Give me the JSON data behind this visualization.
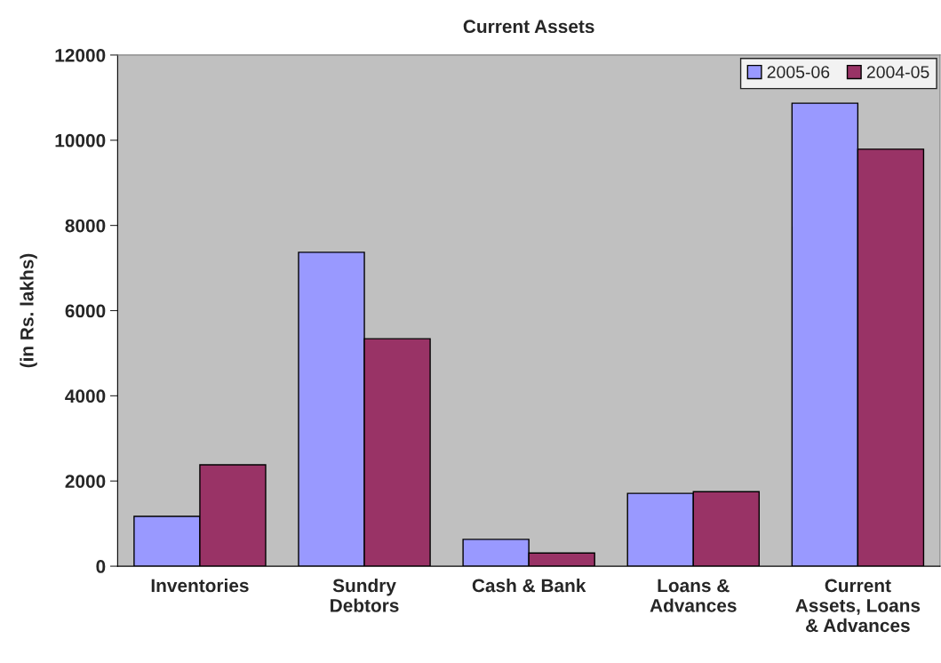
{
  "chart_data": {
    "type": "bar",
    "title": "Current Assets",
    "ylabel": "(in Rs. lakhs)",
    "categories": [
      "Inventories",
      "Sundry\nDebtors",
      "Cash & Bank",
      "Loans &\nAdvances",
      "Current\nAssets, Loans\n& Advances"
    ],
    "series": [
      {
        "name": "2005-06",
        "color": "#9999ff",
        "values": [
          1170,
          7370,
          630,
          1710,
          10870
        ]
      },
      {
        "name": "2004-05",
        "color": "#993366",
        "values": [
          2380,
          5340,
          310,
          1750,
          9790
        ]
      }
    ],
    "ylim": [
      0,
      12000
    ],
    "yticks": [
      0,
      2000,
      4000,
      6000,
      8000,
      10000,
      12000
    ],
    "grid": false,
    "legend": "top right"
  }
}
